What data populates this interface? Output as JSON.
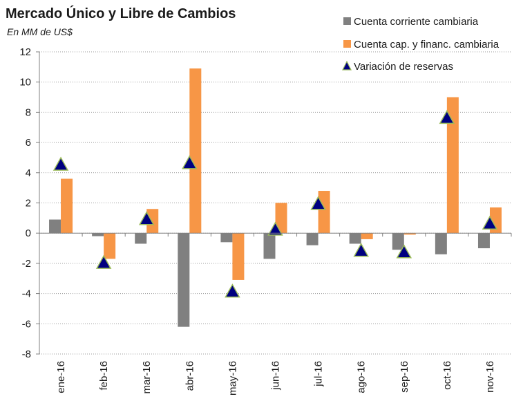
{
  "chart_data": {
    "type": "bar",
    "title": "Mercado Único y Libre de Cambios",
    "subtitle": "En MM de US$",
    "xlabel": "",
    "ylabel": "",
    "ylim": [
      -8,
      12
    ],
    "yticks": [
      -8,
      -6,
      -4,
      -2,
      0,
      2,
      4,
      6,
      8,
      10,
      12
    ],
    "grid": true,
    "legend_position": "top-right",
    "categories": [
      "ene-16",
      "feb-16",
      "mar-16",
      "abr-16",
      "may-16",
      "jun-16",
      "jul-16",
      "ago-16",
      "sep-16",
      "oct-16",
      "nov-16"
    ],
    "series": [
      {
        "name": "Cuenta corriente cambiaria",
        "type": "bar",
        "color": "#808080",
        "values": [
          0.9,
          -0.2,
          -0.7,
          -6.2,
          -0.6,
          -1.7,
          -0.8,
          -0.7,
          -1.1,
          -1.4,
          -1.0
        ]
      },
      {
        "name": "Cuenta cap. y financ. cambiaria",
        "type": "bar",
        "color": "#F79646",
        "values": [
          3.6,
          -1.7,
          1.6,
          10.9,
          -3.1,
          2.0,
          2.8,
          -0.4,
          -0.1,
          9.0,
          1.7
        ]
      },
      {
        "name": "Variación de reservas",
        "type": "marker",
        "marker": "triangle",
        "color": "#000080",
        "edge_color": "#9BBB59",
        "values": [
          4.5,
          -2.0,
          0.9,
          4.6,
          -3.9,
          0.2,
          1.9,
          -1.2,
          -1.3,
          7.6,
          0.6
        ]
      }
    ]
  }
}
